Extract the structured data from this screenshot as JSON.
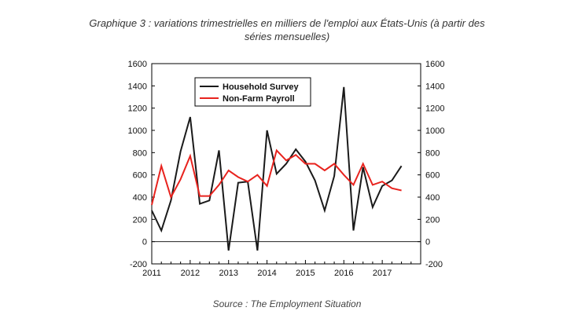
{
  "title_line1": "Graphique 3 : variations trimestrielles en milliers de l'emploi aux États-Unis (à partir des",
  "title_line2": "séries mensuelles)",
  "source": "Source : The Employment Situation",
  "colors": {
    "household": "#1a1a1a",
    "payroll": "#e8231e",
    "axis": "#000000"
  },
  "chart_data": {
    "type": "line",
    "title": "Graphique 3 : variations trimestrielles en milliers de l'emploi aux États-Unis (à partir des séries mensuelles)",
    "xlabel": "",
    "ylabel": "",
    "xlim": [
      2011.0,
      2018.0
    ],
    "ylim": [
      -200,
      1600
    ],
    "y_ticks": [
      -200,
      0,
      200,
      400,
      600,
      800,
      1000,
      1200,
      1400,
      1600
    ],
    "y_tick_labels_left": [
      "-200",
      "0",
      "200",
      "400",
      "600",
      "800",
      "1000",
      "1200",
      "1400",
      "1600"
    ],
    "y_tick_labels_right": [
      "-200",
      "0",
      "200",
      "400",
      "600",
      "800",
      "1000",
      "1200",
      "1400",
      "1600"
    ],
    "x_ticks": [
      2011,
      2012,
      2013,
      2014,
      2015,
      2016,
      2017
    ],
    "x_tick_labels": [
      "2011",
      "2012",
      "2013",
      "2014",
      "2015",
      "2016",
      "2017"
    ],
    "grid": false,
    "legend_position": "top-left",
    "x": [
      2011.0,
      2011.25,
      2011.5,
      2011.75,
      2012.0,
      2012.25,
      2012.5,
      2012.75,
      2013.0,
      2013.25,
      2013.5,
      2013.75,
      2014.0,
      2014.25,
      2014.5,
      2014.75,
      2015.0,
      2015.25,
      2015.5,
      2015.75,
      2016.0,
      2016.25,
      2016.5,
      2016.75,
      2017.0,
      2017.25,
      2017.5
    ],
    "series": [
      {
        "name": "Household Survey",
        "color": "#1a1a1a",
        "values": [
          280,
          100,
          370,
          810,
          1120,
          340,
          370,
          820,
          -80,
          530,
          540,
          -80,
          1000,
          610,
          700,
          830,
          720,
          550,
          280,
          590,
          1390,
          100,
          670,
          310,
          500,
          550,
          680
        ]
      },
      {
        "name": "Non-Farm Payroll",
        "color": "#e8231e",
        "values": [
          330,
          680,
          400,
          560,
          770,
          410,
          410,
          510,
          640,
          580,
          540,
          600,
          500,
          820,
          730,
          780,
          700,
          700,
          640,
          700,
          600,
          510,
          700,
          510,
          540,
          480,
          460
        ]
      }
    ]
  }
}
